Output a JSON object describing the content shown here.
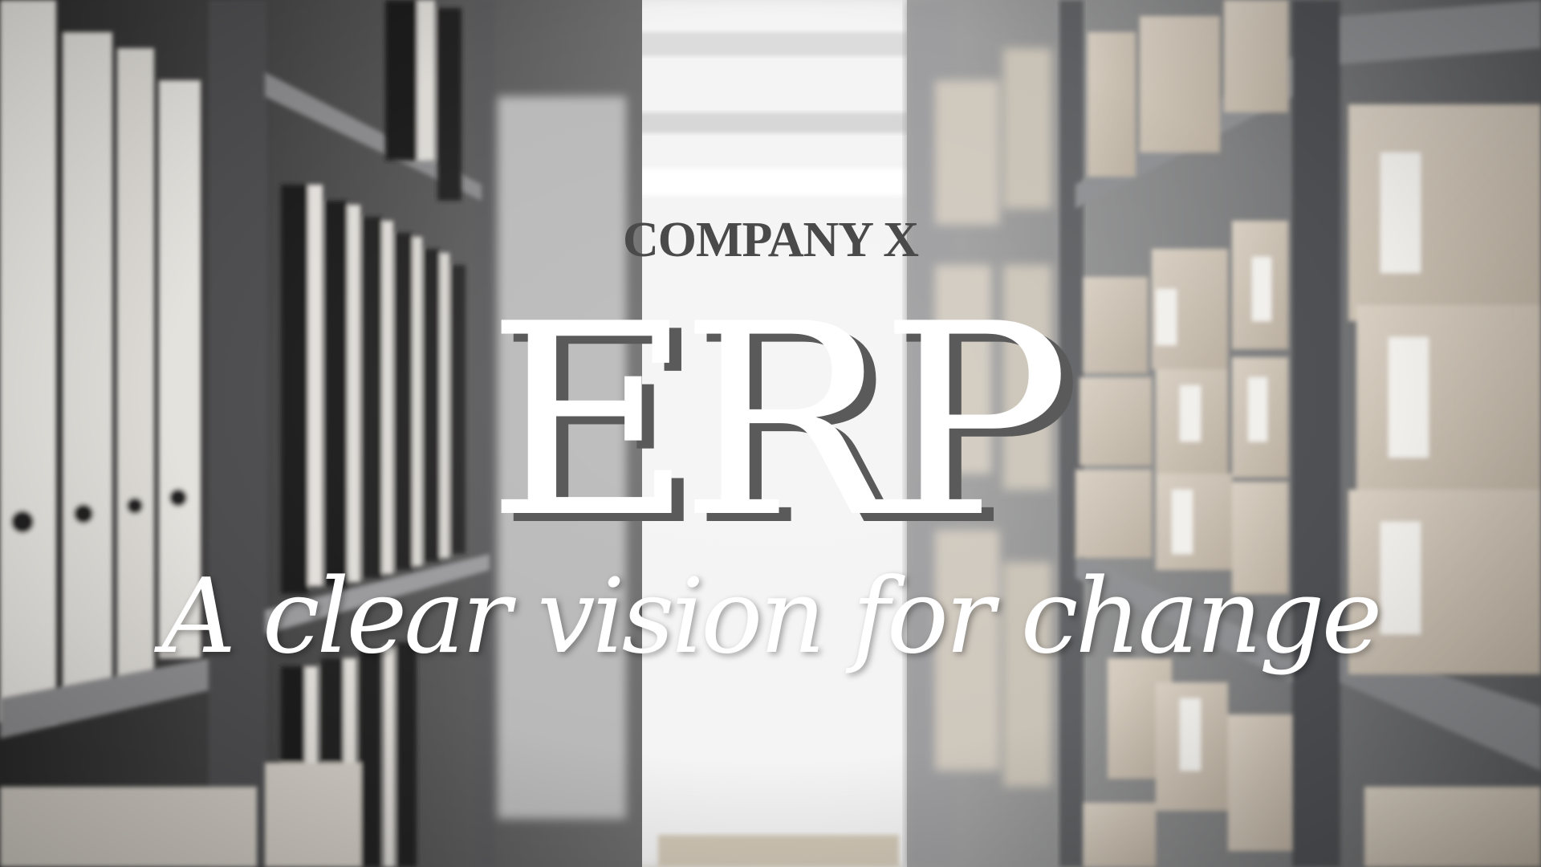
{
  "hero": {
    "company": "COMPANY X",
    "title": "ERP",
    "tagline": "A clear vision for change"
  },
  "colors": {
    "company_text": "#4a4a4a",
    "title_text": "#ffffff",
    "title_shadow": "#5a5a5a",
    "tagline_text": "#ffffff"
  },
  "background": {
    "description_icon": "archive-shelves-image"
  }
}
